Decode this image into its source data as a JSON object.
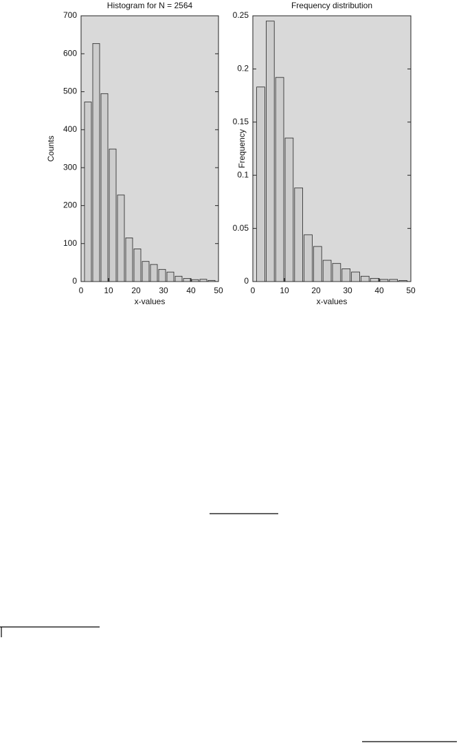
{
  "chart_data": [
    {
      "type": "histogram",
      "title": "Histogram for N = 2564",
      "xlabel": "x-values",
      "ylabel": "Counts",
      "bins": [
        1,
        4,
        7,
        10,
        13,
        16,
        19,
        22,
        25,
        28,
        31,
        34,
        37,
        40,
        43,
        46,
        49
      ],
      "values": [
        473,
        627,
        495,
        349,
        228,
        115,
        86,
        53,
        45,
        32,
        25,
        14,
        8,
        5,
        6,
        3
      ],
      "color": "#cdcdcd",
      "xlim": [
        0,
        50
      ],
      "xticks": [
        0,
        10,
        20,
        30,
        40,
        50
      ],
      "ylim": [
        0,
        700
      ],
      "yticks": [
        0,
        100,
        200,
        300,
        400,
        500,
        600,
        700
      ]
    },
    {
      "type": "histogram",
      "title": "Frequency distribution",
      "xlabel": "x-values",
      "ylabel": "Frequency",
      "bins": [
        1,
        4,
        7,
        10,
        13,
        16,
        19,
        22,
        25,
        28,
        31,
        34,
        37,
        40,
        43,
        46,
        49
      ],
      "values": [
        0.183,
        0.245,
        0.192,
        0.135,
        0.088,
        0.044,
        0.033,
        0.02,
        0.017,
        0.012,
        0.009,
        0.005,
        0.003,
        0.002,
        0.002,
        0.001
      ],
      "color": "#cdcdcd",
      "xlim": [
        0,
        50
      ],
      "xticks": [
        0,
        10,
        20,
        30,
        40,
        50
      ],
      "ylim": [
        0,
        0.25
      ],
      "yticks": [
        0,
        0.05,
        0.1,
        0.15,
        0.2,
        0.25
      ]
    }
  ]
}
